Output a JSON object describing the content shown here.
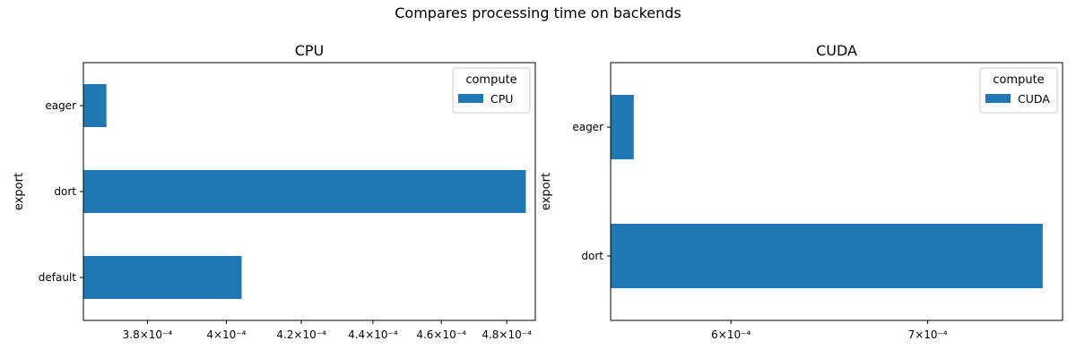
{
  "figure": {
    "suptitle": "Compares processing time on backends",
    "bar_color": "#1f77b4"
  },
  "chart_data": [
    {
      "type": "bar",
      "orientation": "horizontal",
      "title": "CPU",
      "xlabel": "",
      "ylabel": "export",
      "categories": [
        "eager",
        "dort",
        "default"
      ],
      "series": [
        {
          "name": "CPU",
          "values": [
            0.00037,
            0.000486,
            0.000404
          ]
        }
      ],
      "x_scale": "log",
      "xlim": [
        0.0003645,
        0.000489
      ],
      "xticks": [
        0.00038,
        0.0004,
        0.00042,
        0.00044,
        0.00046,
        0.00048
      ],
      "xtick_labels": [
        "3.8×10⁻⁴",
        "4×10⁻⁴",
        "4.2×10⁻⁴",
        "4.4×10⁻⁴",
        "4.6×10⁻⁴",
        "4.8×10⁻⁴"
      ],
      "legend": {
        "title": "compute",
        "placement": "upper right"
      },
      "grid": false
    },
    {
      "type": "bar",
      "orientation": "horizontal",
      "title": "CUDA",
      "xlabel": "",
      "ylabel": "export",
      "categories": [
        "eager",
        "dort"
      ],
      "series": [
        {
          "name": "CUDA",
          "values": [
            0.000556,
            0.000766
          ]
        }
      ],
      "x_scale": "log",
      "xlim": [
        0.000546,
        0.000778
      ],
      "xticks": [
        0.0006,
        0.0007
      ],
      "xtick_labels": [
        "6×10⁻⁴",
        "7×10⁻⁴"
      ],
      "legend": {
        "title": "compute",
        "placement": "upper right"
      },
      "grid": false
    }
  ]
}
